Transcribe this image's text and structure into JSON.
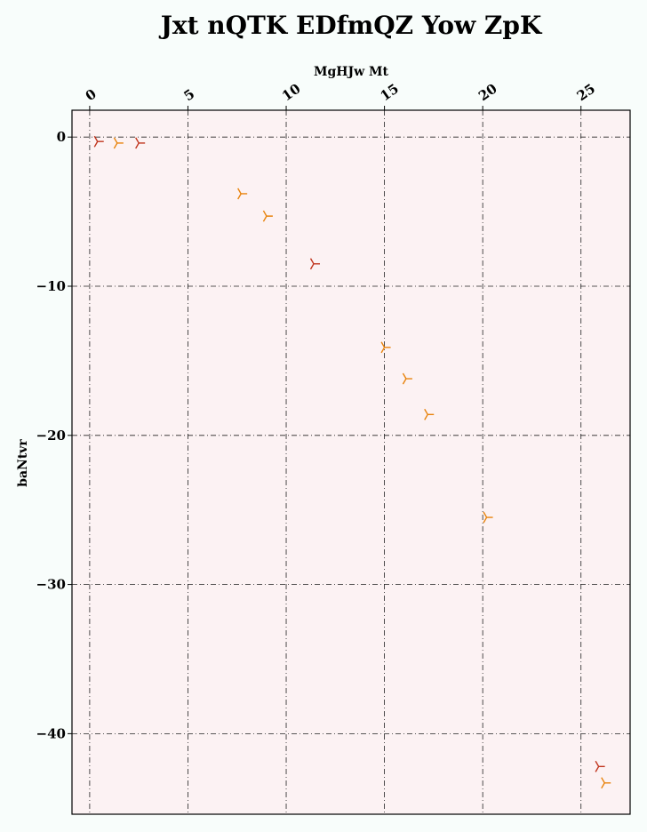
{
  "chart_data": {
    "type": "scatter",
    "title": "Jxt nQTK EDfmQZ  Yow ZpK",
    "xlabel": "MgHJw Mt",
    "ylabel": "baNtvr",
    "xlim": [
      -0.9,
      27.5
    ],
    "ylim": [
      -45.4,
      1.8
    ],
    "x_ticks": [
      0,
      5,
      10,
      15,
      20,
      25
    ],
    "x_tick_labels": [
      "0",
      "5",
      "10",
      "15",
      "20",
      "25"
    ],
    "y_ticks": [
      0,
      -10,
      -20,
      -30,
      -40
    ],
    "y_tick_labels": [
      "0",
      "−10",
      "−20",
      "−30",
      "−40"
    ],
    "x_axis_position": "top",
    "grid": true,
    "colors": {
      "background": "#f8fdfb",
      "plot_background": "#fcf2f3"
    },
    "series": [
      {
        "color": "#c0341d",
        "marker": "tri-right",
        "points": [
          [
            0.4,
            -0.3
          ],
          [
            2.5,
            -0.4
          ],
          [
            11.4,
            -8.5
          ],
          [
            25.9,
            -42.2
          ]
        ]
      },
      {
        "color": "#e8830c",
        "marker": "tri-right",
        "points": [
          [
            1.4,
            -0.4
          ],
          [
            7.7,
            -3.8
          ],
          [
            9.0,
            -5.3
          ],
          [
            15.0,
            -14.1
          ],
          [
            16.1,
            -16.2
          ],
          [
            17.2,
            -18.6
          ],
          [
            20.2,
            -25.5
          ],
          [
            26.2,
            -43.3
          ]
        ]
      }
    ]
  }
}
